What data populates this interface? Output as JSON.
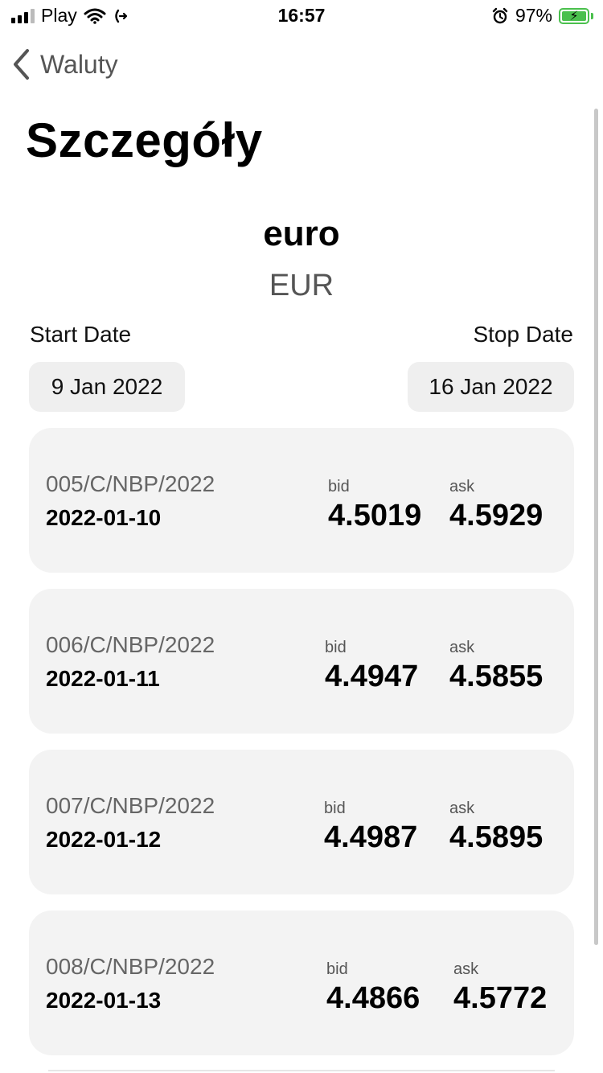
{
  "status_bar": {
    "carrier": "Play",
    "time": "16:57",
    "battery_percent": "97%",
    "battery_color": "#4ac04d"
  },
  "nav": {
    "back_label": "Waluty"
  },
  "page_title": "Szczegóły",
  "currency": {
    "name": "euro",
    "code": "EUR"
  },
  "date_range": {
    "start_label": "Start Date",
    "start_value": "9 Jan 2022",
    "stop_label": "Stop Date",
    "stop_value": "16 Jan 2022"
  },
  "rates": [
    {
      "table_no": "005/C/NBP/2022",
      "date": "2022-01-10",
      "bid_label": "bid",
      "bid": "4.5019",
      "ask_label": "ask",
      "ask": "4.5929"
    },
    {
      "table_no": "006/C/NBP/2022",
      "date": "2022-01-11",
      "bid_label": "bid",
      "bid": "4.4947",
      "ask_label": "ask",
      "ask": "4.5855"
    },
    {
      "table_no": "007/C/NBP/2022",
      "date": "2022-01-12",
      "bid_label": "bid",
      "bid": "4.4987",
      "ask_label": "ask",
      "ask": "4.5895"
    },
    {
      "table_no": "008/C/NBP/2022",
      "date": "2022-01-13",
      "bid_label": "bid",
      "bid": "4.4866",
      "ask_label": "ask",
      "ask": "4.5772"
    }
  ]
}
